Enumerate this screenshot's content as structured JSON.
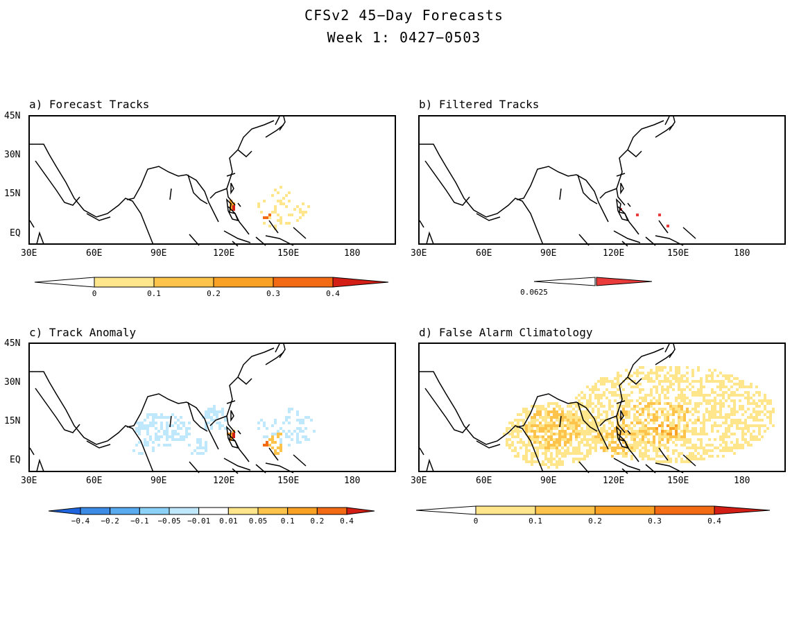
{
  "title": {
    "line1": "CFSv2 45−Day Forecasts",
    "line2": "Week 1: 0427−0503"
  },
  "axes": {
    "lat_labels": [
      "45N",
      "30N",
      "15N",
      "EQ"
    ],
    "lon_labels": [
      "30E",
      "60E",
      "90E",
      "120E",
      "150E",
      "180"
    ]
  },
  "panels": [
    {
      "id": "a",
      "title": "a) Forecast Tracks"
    },
    {
      "id": "b",
      "title": "b) Filtered Tracks"
    },
    {
      "id": "c",
      "title": "c) Track Anomaly"
    },
    {
      "id": "d",
      "title": "d) False Alarm Climatology"
    }
  ],
  "colorbars": {
    "a": {
      "labels": [
        "0",
        "0.1",
        "0.2",
        "0.3",
        "0.4"
      ],
      "colors": [
        "#ffffff",
        "#ffe68c",
        "#fdc34a",
        "#f9a124",
        "#f36a14",
        "#d21e14"
      ]
    },
    "b": {
      "labels": [
        "0.0625"
      ],
      "colors": [
        "#ffffff",
        "#ea3b3b"
      ]
    },
    "c": {
      "labels": [
        "−0.4",
        "−0.2",
        "−0.1",
        "−0.05",
        "−0.01",
        "0.01",
        "0.05",
        "0.1",
        "0.2",
        "0.4"
      ],
      "colors": [
        "#1e64dc",
        "#3c8ce6",
        "#5aaaf0",
        "#8cd2f8",
        "#bfe8fc",
        "#ffffff",
        "#ffe68c",
        "#fdc34a",
        "#f9a124",
        "#f36a14",
        "#d21e14"
      ]
    },
    "d": {
      "labels": [
        "0",
        "0.1",
        "0.2",
        "0.3",
        "0.4"
      ],
      "colors": [
        "#ffffff",
        "#ffe68c",
        "#fdc34a",
        "#f9a124",
        "#f36a14",
        "#d21e14"
      ]
    }
  }
}
